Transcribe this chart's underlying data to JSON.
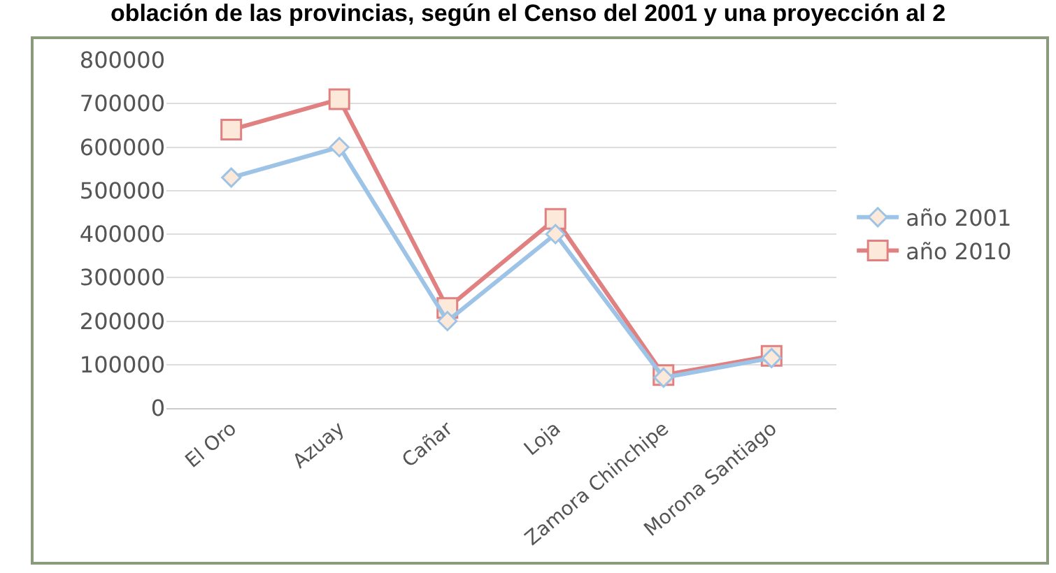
{
  "chart_data": {
    "type": "line",
    "title": "oblación de las provincias, según el Censo del 2001 y una proyección al 2",
    "categories": [
      "El Oro",
      "Azuay",
      "Cañar",
      "Loja",
      "Zamora Chinchipe",
      "Morona Santiago"
    ],
    "series": [
      {
        "name": "año 2001",
        "color": "#9dc3e6",
        "marker": "diamond",
        "values": [
          530000,
          600000,
          200000,
          400000,
          70000,
          115000
        ]
      },
      {
        "name": "año 2010",
        "color": "#e08080",
        "marker": "square",
        "values": [
          640000,
          710000,
          230000,
          435000,
          76000,
          120000
        ]
      }
    ],
    "ylim": [
      0,
      800000
    ],
    "yticks": [
      0,
      100000,
      200000,
      300000,
      400000,
      500000,
      600000,
      700000,
      800000
    ],
    "grid": "y",
    "legend": "right"
  }
}
